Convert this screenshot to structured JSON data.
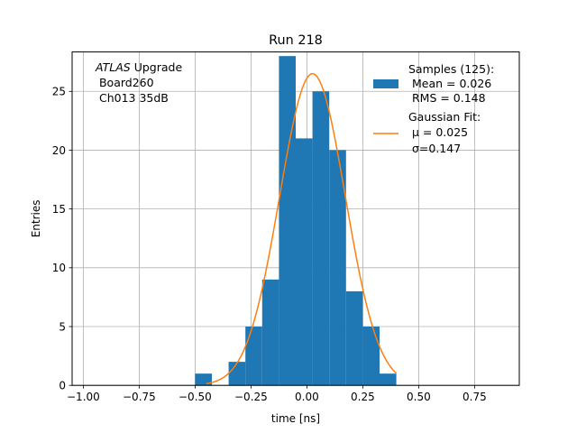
{
  "chart_data": {
    "type": "bar",
    "title": "Run 218",
    "xlabel": "time [ns]",
    "ylabel": "Entries",
    "xlim": [
      -1.05,
      0.95
    ],
    "ylim": [
      0,
      28.35
    ],
    "xticks": [
      -1.0,
      -0.75,
      -0.5,
      -0.25,
      0.0,
      0.25,
      0.5,
      0.75
    ],
    "xtick_labels": [
      "−1.00",
      "−0.75",
      "−0.50",
      "−0.25",
      "0.00",
      "0.25",
      "0.50",
      "0.75"
    ],
    "yticks": [
      0,
      5,
      10,
      15,
      20,
      25
    ],
    "ytick_labels": [
      "0",
      "5",
      "10",
      "15",
      "20",
      "25"
    ],
    "grid": true,
    "legend_position": "top-right",
    "annotation": {
      "italic": "ATLAS",
      "line1_rest": " Upgrade",
      "line2": " Board260",
      "line3": " Ch013 35dB"
    },
    "colors": {
      "histogram": "#1f77b4",
      "fit": "#ff7f0e"
    },
    "series": [
      {
        "name": "Samples (125):",
        "legend_lines": [
          "Samples (125):",
          " Mean = 0.026",
          " RMS = 0.148"
        ],
        "kind": "histogram",
        "bin_width": 0.075,
        "bins": [
          {
            "x0": -0.5,
            "count": 1
          },
          {
            "x0": -0.35,
            "count": 2
          },
          {
            "x0": -0.275,
            "count": 5
          },
          {
            "x0": -0.2,
            "count": 9
          },
          {
            "x0": -0.125,
            "count": 28
          },
          {
            "x0": -0.05,
            "count": 21
          },
          {
            "x0": 0.025,
            "count": 25
          },
          {
            "x0": 0.1,
            "count": 20
          },
          {
            "x0": 0.175,
            "count": 8
          },
          {
            "x0": 0.25,
            "count": 5
          },
          {
            "x0": 0.325,
            "count": 1
          }
        ]
      },
      {
        "name": "Gaussian Fit:",
        "legend_lines": [
          "Gaussian Fit:",
          " μ = 0.025",
          " σ=0.147"
        ],
        "kind": "line",
        "amplitude": 26.5,
        "mu": 0.025,
        "sigma": 0.147,
        "x_range": [
          -0.45,
          0.4
        ]
      }
    ]
  }
}
